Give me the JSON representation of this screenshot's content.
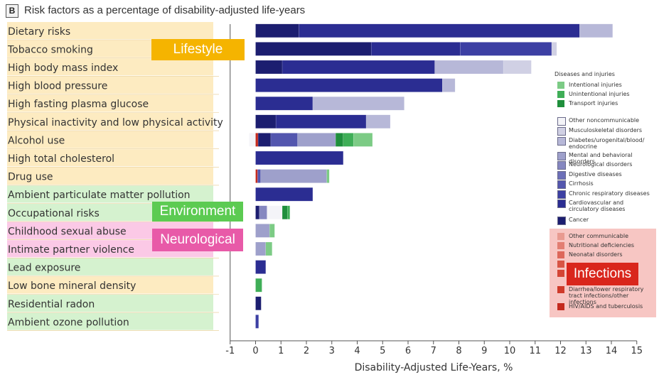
{
  "panel": {
    "letter": "B",
    "title": "Risk factors as a percentage of disability-adjusted life-years"
  },
  "tags": {
    "lifestyle": {
      "label": "Lifestyle",
      "color": "#f5b400"
    },
    "environment": {
      "label": "Environment",
      "color": "#5ccb52"
    },
    "neurological": {
      "label": "Neurological",
      "color": "#e85aa8"
    },
    "infections": {
      "label": "Infections",
      "color": "#d9261c"
    }
  },
  "category_colors": {
    "lifestyle": "#fdebc1",
    "environment": "#d5f2cf",
    "neurological": "#fbc9e6"
  },
  "legend": {
    "heading": "Diseases and injuries",
    "items": [
      {
        "label": "Intentional injuries",
        "color": "#7ccb85",
        "group": "injuries"
      },
      {
        "label": "Unintentional injuries",
        "color": "#3fae57",
        "group": "injuries"
      },
      {
        "label": "Transport injuries",
        "color": "#1f8f3c",
        "group": "injuries"
      },
      {
        "label": "Other noncommunicable",
        "color": "#f4f4f8",
        "group": "ncd"
      },
      {
        "label": "Musculoskeletal disorders",
        "color": "#d0d0e4",
        "group": "ncd"
      },
      {
        "label": "Diabetes/urogenital/blood/ endocrine",
        "color": "#b7b8d8",
        "group": "ncd"
      },
      {
        "label": "Mental and behavioral disorders",
        "color": "#9ea0cb",
        "group": "ncd"
      },
      {
        "label": "Neurological disorders",
        "color": "#8587c0",
        "group": "ncd"
      },
      {
        "label": "Digestive diseases",
        "color": "#6c6fb8",
        "group": "ncd"
      },
      {
        "label": "Cirrhosis",
        "color": "#5356ae",
        "group": "ncd"
      },
      {
        "label": "Chronic respiratory diseases",
        "color": "#3c3fa3",
        "group": "ncd"
      },
      {
        "label": "Cardiovascular and circulatory diseases",
        "color": "#2b2d92",
        "group": "ncd"
      },
      {
        "label": "Cancer",
        "color": "#1c1e70",
        "group": "ncd"
      },
      {
        "label": "Other communicable",
        "color": "#e89a90",
        "group": "comm"
      },
      {
        "label": "Nutritional deficiencies",
        "color": "#e27e72",
        "group": "comm"
      },
      {
        "label": "Neonatal disorders",
        "color": "#dd675a",
        "group": "comm"
      },
      {
        "label": "",
        "color": "#d85545",
        "group": "comm"
      },
      {
        "label": "",
        "color": "#d44535",
        "group": "comm"
      },
      {
        "label": "Diarrhea/lower respiratory tract infections/other infections",
        "color": "#cf3a2a",
        "group": "comm"
      },
      {
        "label": "HIV/AIDS and tuberculosis",
        "color": "#c42a1e",
        "group": "comm"
      }
    ]
  },
  "chart_data": {
    "type": "bar",
    "orientation": "horizontal",
    "stacked": true,
    "title": "Risk factors as a percentage of disability-adjusted life-years",
    "xlabel": "Disability-Adjusted Life-Years, %",
    "ylabel": "",
    "xlim": [
      -1,
      15
    ],
    "xticks": [
      -1,
      0,
      1,
      2,
      3,
      4,
      5,
      6,
      7,
      8,
      9,
      10,
      11,
      12,
      13,
      14,
      15
    ],
    "categories": [
      "Dietary risks",
      "Tobacco smoking",
      "High body mass index",
      "High blood pressure",
      "High fasting plasma glucose",
      "Physical inactivity and low physical activity",
      "Alcohol use",
      "High total cholesterol",
      "Drug use",
      "Ambient particulate matter pollution",
      "Occupational risks",
      "Childhood sexual abuse",
      "Intimate partner violence",
      "Lead exposure",
      "Low bone mineral density",
      "Residential radon",
      "Ambient ozone pollution"
    ],
    "category_groups": [
      "lifestyle",
      "lifestyle",
      "lifestyle",
      "lifestyle",
      "lifestyle",
      "lifestyle",
      "lifestyle",
      "lifestyle",
      "lifestyle",
      "environment",
      "environment",
      "neurological",
      "neurological",
      "environment",
      "lifestyle",
      "environment",
      "environment"
    ],
    "bars": [
      [
        {
          "s": "Cancer",
          "from": 0,
          "to": 1.7
        },
        {
          "s": "Cardiovascular and circulatory diseases",
          "from": 1.7,
          "to": 12.75
        },
        {
          "s": "Diabetes/urogenital/blood/ endocrine",
          "from": 12.75,
          "to": 14.05
        }
      ],
      [
        {
          "s": "Cancer",
          "from": 0,
          "to": 4.55
        },
        {
          "s": "Cardiovascular and circulatory diseases",
          "from": 4.55,
          "to": 8.05
        },
        {
          "s": "Chronic respiratory diseases",
          "from": 8.05,
          "to": 11.65
        },
        {
          "s": "Musculoskeletal disorders",
          "from": 11.65,
          "to": 11.85
        }
      ],
      [
        {
          "s": "Cancer",
          "from": 0,
          "to": 1.05
        },
        {
          "s": "Cardiovascular and circulatory diseases",
          "from": 1.05,
          "to": 7.05
        },
        {
          "s": "Diabetes/urogenital/blood/ endocrine",
          "from": 7.05,
          "to": 9.75
        },
        {
          "s": "Musculoskeletal disorders",
          "from": 9.75,
          "to": 10.85
        }
      ],
      [
        {
          "s": "Cardiovascular and circulatory diseases",
          "from": 0,
          "to": 7.35
        },
        {
          "s": "Diabetes/urogenital/blood/ endocrine",
          "from": 7.35,
          "to": 7.85
        }
      ],
      [
        {
          "s": "Cardiovascular and circulatory diseases",
          "from": 0,
          "to": 2.25
        },
        {
          "s": "Diabetes/urogenital/blood/ endocrine",
          "from": 2.25,
          "to": 5.85
        }
      ],
      [
        {
          "s": "Cancer",
          "from": 0,
          "to": 0.8
        },
        {
          "s": "Cardiovascular and circulatory diseases",
          "from": 0.8,
          "to": 4.35
        },
        {
          "s": "Diabetes/urogenital/blood/ endocrine",
          "from": 4.35,
          "to": 5.3
        }
      ],
      [
        {
          "s": "Other noncommunicable",
          "from": -0.25,
          "to": 0
        },
        {
          "s": "HIV/AIDS and tuberculosis",
          "from": 0,
          "to": 0.1
        },
        {
          "s": "Cancer",
          "from": 0.1,
          "to": 0.6
        },
        {
          "s": "Cirrhosis",
          "from": 0.6,
          "to": 1.65
        },
        {
          "s": "Mental and behavioral disorders",
          "from": 1.65,
          "to": 3.15
        },
        {
          "s": "Transport injuries",
          "from": 3.15,
          "to": 3.45
        },
        {
          "s": "Unintentional injuries",
          "from": 3.45,
          "to": 3.85
        },
        {
          "s": "Intentional injuries",
          "from": 3.85,
          "to": 4.6
        }
      ],
      [
        {
          "s": "Cardiovascular and circulatory diseases",
          "from": 0,
          "to": 3.45
        }
      ],
      [
        {
          "s": "HIV/AIDS and tuberculosis",
          "from": 0,
          "to": 0.08
        },
        {
          "s": "Cirrhosis",
          "from": 0.08,
          "to": 0.2
        },
        {
          "s": "Mental and behavioral disorders",
          "from": 0.2,
          "to": 2.8
        },
        {
          "s": "Intentional injuries",
          "from": 2.8,
          "to": 2.9
        }
      ],
      [
        {
          "s": "Cardiovascular and circulatory diseases",
          "from": 0,
          "to": 2.25
        }
      ],
      [
        {
          "s": "Cancer",
          "from": 0,
          "to": 0.15
        },
        {
          "s": "Neurological disorders",
          "from": 0.15,
          "to": 0.45
        },
        {
          "s": "Other noncommunicable",
          "from": 0.45,
          "to": 1.05
        },
        {
          "s": "Transport injuries",
          "from": 1.05,
          "to": 1.25
        },
        {
          "s": "Unintentional injuries",
          "from": 1.25,
          "to": 1.35
        }
      ],
      [
        {
          "s": "Mental and behavioral disorders",
          "from": 0,
          "to": 0.55
        },
        {
          "s": "Intentional injuries",
          "from": 0.55,
          "to": 0.75
        }
      ],
      [
        {
          "s": "Mental and behavioral disorders",
          "from": 0,
          "to": 0.4
        },
        {
          "s": "Intentional injuries",
          "from": 0.4,
          "to": 0.65
        }
      ],
      [
        {
          "s": "Cardiovascular and circulatory diseases",
          "from": 0,
          "to": 0.4
        }
      ],
      [
        {
          "s": "Unintentional injuries",
          "from": 0,
          "to": 0.25
        }
      ],
      [
        {
          "s": "Cancer",
          "from": 0,
          "to": 0.22
        }
      ],
      [
        {
          "s": "Chronic respiratory diseases",
          "from": 0,
          "to": 0.12
        }
      ]
    ]
  }
}
